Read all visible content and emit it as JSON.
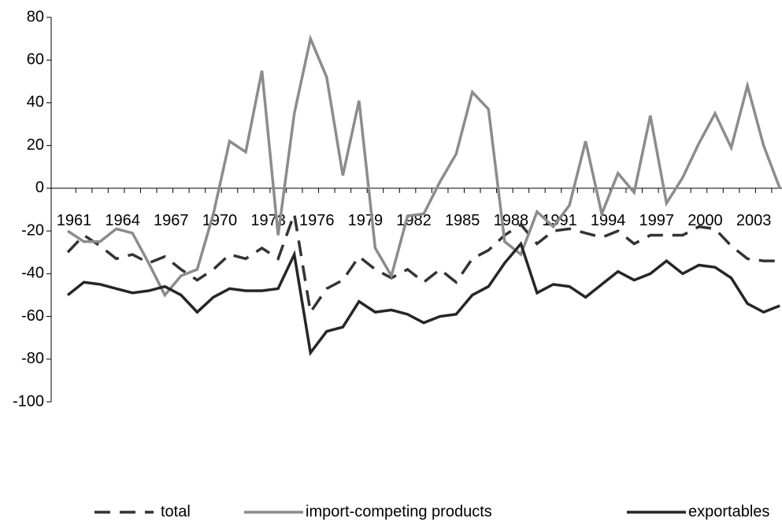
{
  "chart_data": {
    "type": "line",
    "categories": [
      "1961",
      null,
      null,
      "1964",
      null,
      null,
      "1967",
      null,
      null,
      "1970",
      null,
      null,
      "1973",
      null,
      null,
      "1976",
      null,
      null,
      "1979",
      null,
      null,
      "1982",
      null,
      null,
      "1985",
      null,
      null,
      "1988",
      null,
      null,
      "1991",
      null,
      null,
      "1994",
      null,
      null,
      "1997",
      null,
      null,
      "2000",
      null,
      null,
      "2003",
      null,
      null
    ],
    "series": [
      {
        "name": "total",
        "color": "#333333",
        "line_style": "dashed",
        "values": [
          -30,
          -22,
          -27,
          -33,
          -31,
          -35,
          -32,
          -38,
          -43,
          -38,
          -31,
          -33,
          -28,
          -33,
          -12,
          -58,
          -47,
          -43,
          -32,
          -38,
          -42,
          -38,
          -44,
          -38,
          -44,
          -33,
          -29,
          -22,
          -17,
          -26,
          -20,
          -19,
          -21,
          -23,
          -20,
          -26,
          -22,
          -22,
          -22,
          -18,
          -19,
          -27,
          -33,
          -34,
          -34
        ]
      },
      {
        "name": "import-competing products",
        "color": "#8c8c8c",
        "line_style": "solid",
        "values": [
          -20,
          -25,
          -25,
          -19,
          -21,
          -35,
          -50,
          -41,
          -38,
          -12,
          22,
          17,
          55,
          -22,
          35,
          70,
          52,
          6,
          41,
          -28,
          -41,
          -13,
          -12,
          3,
          16,
          45,
          37,
          -25,
          -31,
          -11,
          -18,
          -8,
          22,
          -12,
          7,
          -2,
          34,
          -7,
          5,
          21,
          35,
          19,
          48,
          20,
          0
        ]
      },
      {
        "name": "exportables",
        "color": "#262626",
        "line_style": "solid",
        "values": [
          -50,
          -44,
          -45,
          -47,
          -49,
          -48,
          -46,
          -50,
          -58,
          -51,
          -47,
          -48,
          -48,
          -47,
          -31,
          -77,
          -67,
          -65,
          -53,
          -58,
          -57,
          -59,
          -63,
          -60,
          -59,
          -50,
          -46,
          -35,
          -26,
          -49,
          -45,
          -46,
          -51,
          -45,
          -39,
          -43,
          -40,
          -34,
          -40,
          -36,
          -37,
          -42,
          -54,
          -58,
          -55
        ]
      }
    ],
    "ylim": [
      -100,
      80
    ],
    "yticks": [
      -100,
      -80,
      -60,
      -40,
      -20,
      0,
      20,
      40,
      60,
      80
    ],
    "legend": "bottom"
  }
}
